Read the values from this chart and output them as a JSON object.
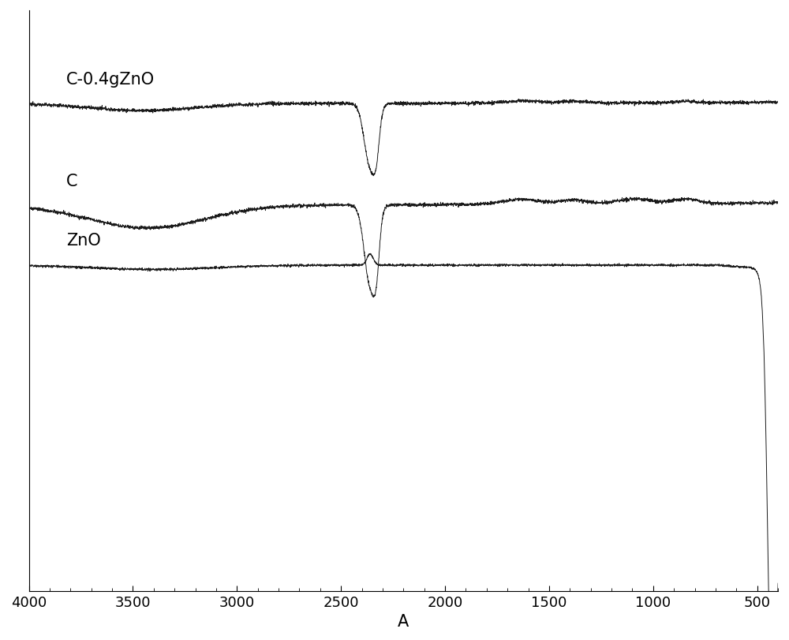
{
  "title": "",
  "xlabel": "A",
  "xlabel_fontsize": 15,
  "tick_fontsize": 13,
  "label_fontsize": 15,
  "line_color": "#1a1a1a",
  "background_color": "#ffffff",
  "xmin": 4000,
  "xmax": 400,
  "xticks": [
    4000,
    3500,
    3000,
    2500,
    2000,
    1500,
    1000,
    500
  ],
  "curve_labels": [
    "C-0.4gZnO",
    "C",
    "ZnO"
  ],
  "figsize": [
    10.0,
    8.12
  ]
}
